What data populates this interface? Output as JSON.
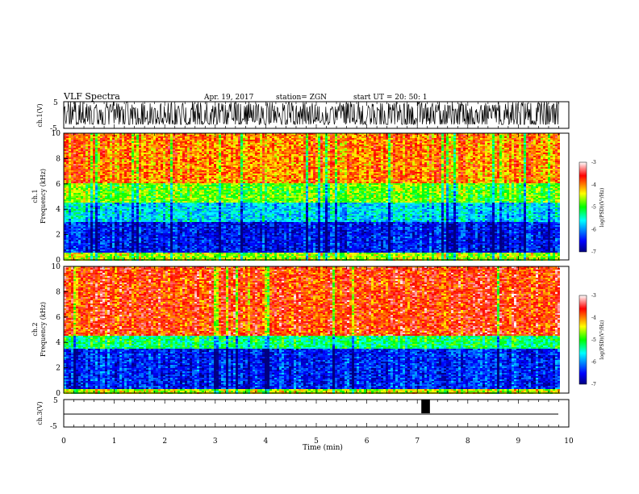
{
  "header": {
    "title": "VLF Spectra",
    "date": "Apr. 19, 2017",
    "station": "station= ZGN",
    "start_ut": "start  UT  =   20: 50: 1"
  },
  "chart_data": [
    {
      "id": "ch1_waveform",
      "type": "line",
      "ylabel": "ch.1(V)",
      "ylim": [
        -5,
        5
      ],
      "yticks": [
        "5",
        "-5"
      ],
      "xlim": [
        0,
        10
      ],
      "description_of_signal": "dense noise, amplitude ~ -3.5 to 5 V over 0-9.8 min"
    },
    {
      "id": "ch1_spectrogram",
      "type": "heatmap",
      "ylabel": "ch.1\nFrequency (kHz)",
      "ylim": [
        0,
        10
      ],
      "yticks": [
        "0",
        "2",
        "4",
        "6",
        "8",
        "10"
      ],
      "xlim": [
        0,
        10
      ],
      "data_extent_min": 9.8,
      "colorbar": {
        "label": "log(PSD)(V²/Hz)",
        "range": [
          -7,
          -3
        ],
        "ticks": [
          "-3",
          "-4",
          "-5",
          "-6",
          "-7"
        ]
      },
      "bands_log_psd": [
        {
          "freq_khz": [
            0,
            0.6
          ],
          "log_psd": -4.6
        },
        {
          "freq_khz": [
            0.6,
            3.0
          ],
          "log_psd": -6.5
        },
        {
          "freq_khz": [
            3.0,
            4.5
          ],
          "log_psd": -5.7
        },
        {
          "freq_khz": [
            4.5,
            6.0
          ],
          "log_psd": -4.8
        },
        {
          "freq_khz": [
            6.0,
            10
          ],
          "log_psd": -4.0
        }
      ]
    },
    {
      "id": "ch2_spectrogram",
      "type": "heatmap",
      "ylabel": "ch.2\nFrequency (kHz)",
      "ylim": [
        0,
        10
      ],
      "yticks": [
        "0",
        "2",
        "4",
        "6",
        "8",
        "10"
      ],
      "xlim": [
        0,
        10
      ],
      "data_extent_min": 9.8,
      "colorbar": {
        "label": "log(PSD)(V²/Hz)",
        "range": [
          -7,
          -3
        ],
        "ticks": [
          "-3",
          "-4",
          "-5",
          "-6",
          "-7"
        ]
      },
      "bands_log_psd": [
        {
          "freq_khz": [
            0,
            0.3
          ],
          "log_psd": -4.5
        },
        {
          "freq_khz": [
            0.3,
            3.5
          ],
          "log_psd": -6.4
        },
        {
          "freq_khz": [
            3.5,
            4.5
          ],
          "log_psd": -5.2
        },
        {
          "freq_khz": [
            4.5,
            10
          ],
          "log_psd": -3.7
        }
      ]
    },
    {
      "id": "ch3_trigger",
      "type": "line",
      "ylabel": "ch.3(V)",
      "ylim": [
        -5,
        5
      ],
      "yticks": [
        "5",
        "-5"
      ],
      "xlim": [
        0,
        10
      ],
      "baseline_v": 0,
      "pulse": {
        "x_start_min": 7.08,
        "x_end_min": 7.25,
        "high_v": 5
      }
    }
  ],
  "xaxis": {
    "label": "Time  (min)",
    "ticks": [
      "0",
      "1",
      "2",
      "3",
      "4",
      "5",
      "6",
      "7",
      "8",
      "9",
      "10"
    ]
  }
}
